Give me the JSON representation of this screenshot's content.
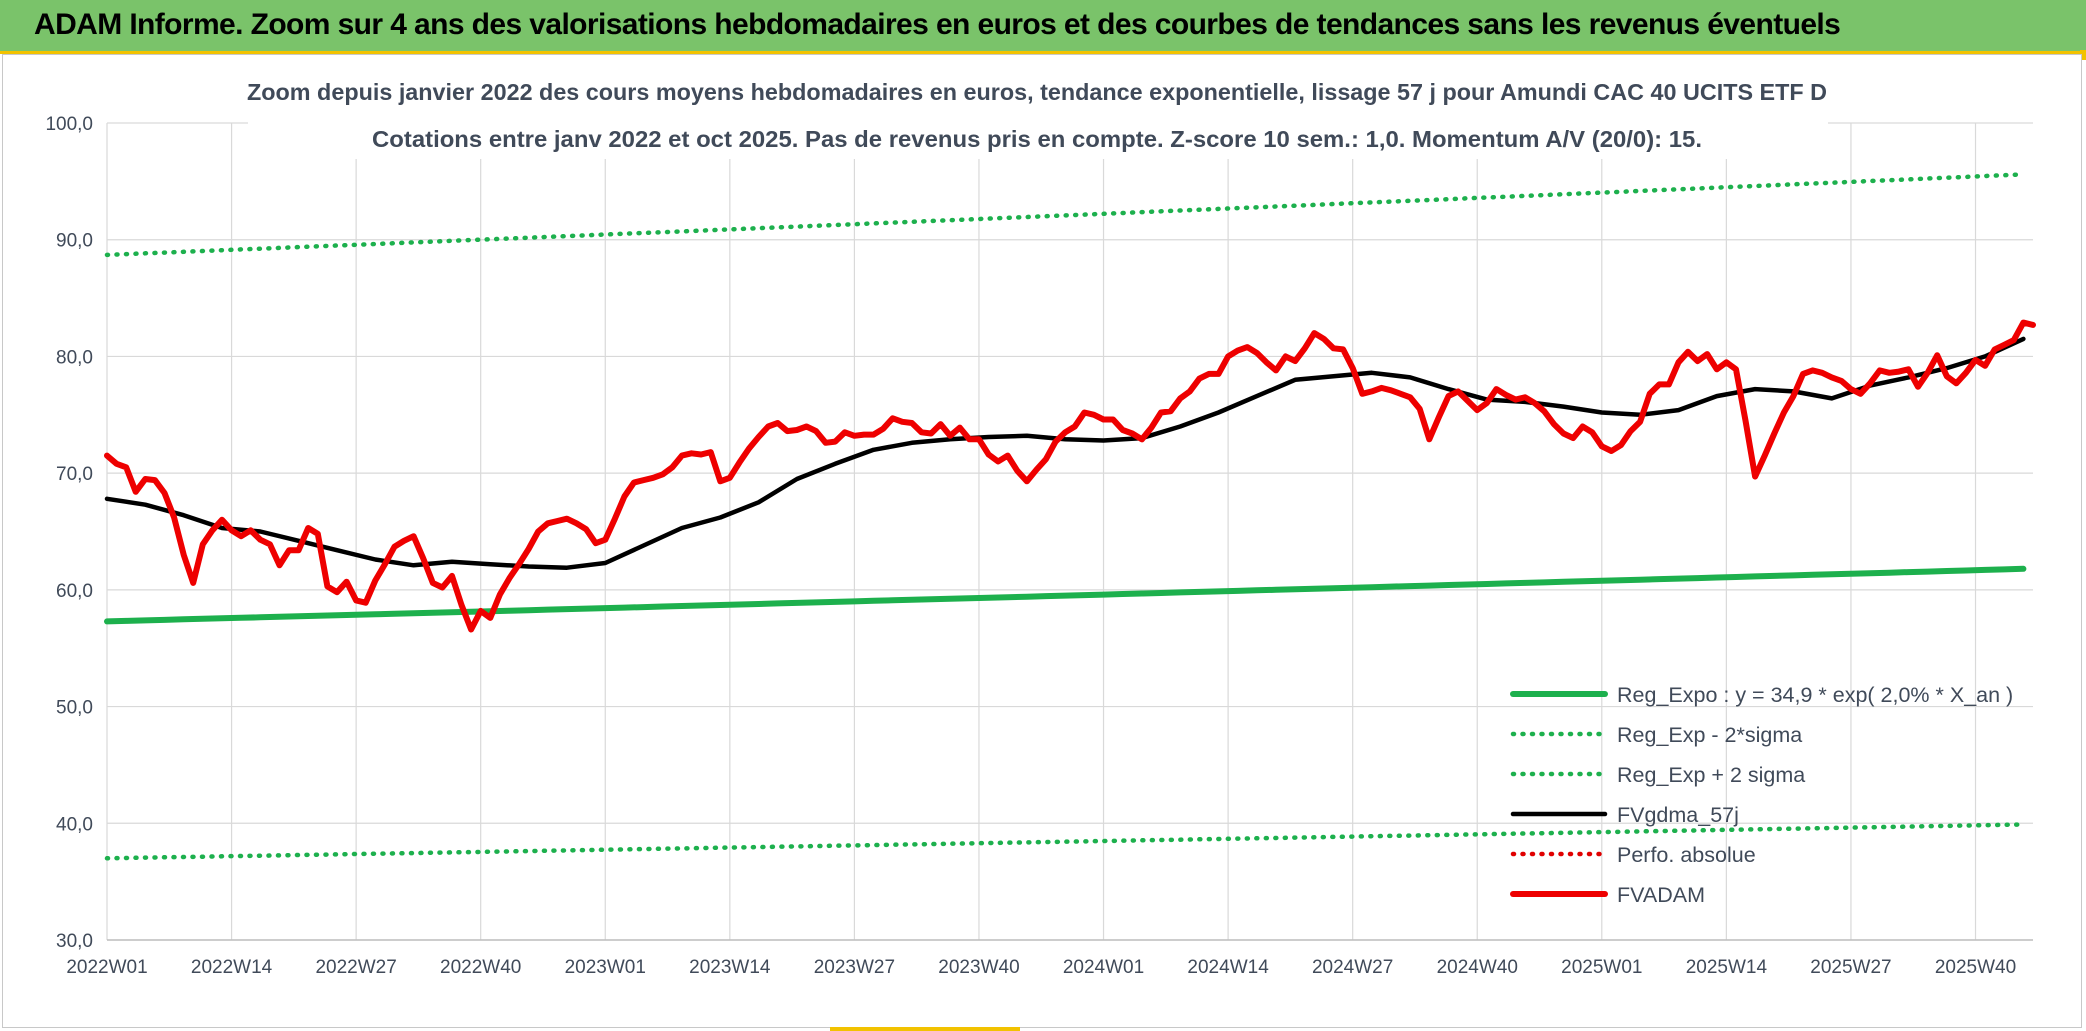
{
  "banner": {
    "title": "ADAM Informe. Zoom sur 4 ans des valorisations hebdomadaires en euros et des courbes de tendances sans les revenus éventuels"
  },
  "colors": {
    "banner_bg": "#7ac36a",
    "accent_yellow": "#f2c200",
    "reg_expo": "#1db04d",
    "sigma_band": "#1db04d",
    "fvgdma": "#000000",
    "perfo": "#e00000",
    "fvadam": "#ee0000",
    "grid": "#d9d9d9",
    "axis_text": "#404a59"
  },
  "chart_data": {
    "type": "line",
    "title": "Zoom depuis janvier 2022 des cours moyens hebdomadaires en euros, tendance exponentielle, lissage 57 j pour Amundi CAC 40 UCITS ETF D",
    "subtitle": "Cotations entre janv 2022 et oct 2025. Pas de revenus pris en compte. Z-score 10 sem.: 1,0. Momentum A/V (20/0): 15.",
    "ylim": [
      30,
      100
    ],
    "yticks": [
      "30,0",
      "40,0",
      "50,0",
      "60,0",
      "70,0",
      "80,0",
      "90,0",
      "100,0"
    ],
    "x_tick_labels": [
      "2022W01",
      "2022W14",
      "2022W27",
      "2022W40",
      "2023W01",
      "2023W14",
      "2023W27",
      "2023W40",
      "2024W01",
      "2024W14",
      "2024W27",
      "2024W40",
      "2025W01",
      "2025W14",
      "2025W27",
      "2025W40"
    ],
    "x_tick_weeks": [
      0,
      13,
      26,
      39,
      52,
      65,
      78,
      91,
      104,
      117,
      130,
      143,
      156,
      169,
      182,
      195
    ],
    "n_weeks": 201,
    "grid": true,
    "legend_position": "bottom-right",
    "series": [
      {
        "name": "Reg_Expo : y = 34,9 * exp( 2,0% *  X_an )",
        "style": "solid-thick",
        "color": "#1db04d",
        "start": 57.3,
        "end": 61.8
      },
      {
        "name": "Reg_Exp - 2*sigma",
        "style": "dotted",
        "color": "#1db04d",
        "start": 37.0,
        "end": 39.9
      },
      {
        "name": "Reg_Exp + 2 sigma",
        "style": "dotted",
        "color": "#1db04d",
        "start": 88.7,
        "end": 95.6
      },
      {
        "name": "FVgdma_57j",
        "style": "solid",
        "color": "#000000",
        "points": [
          [
            0,
            67.8
          ],
          [
            4,
            67.3
          ],
          [
            8,
            66.4
          ],
          [
            12,
            65.3
          ],
          [
            16,
            65.0
          ],
          [
            20,
            64.2
          ],
          [
            24,
            63.4
          ],
          [
            28,
            62.6
          ],
          [
            32,
            62.1
          ],
          [
            36,
            62.4
          ],
          [
            40,
            62.2
          ],
          [
            44,
            62.0
          ],
          [
            48,
            61.9
          ],
          [
            52,
            62.3
          ],
          [
            56,
            63.8
          ],
          [
            60,
            65.3
          ],
          [
            64,
            66.2
          ],
          [
            68,
            67.5
          ],
          [
            72,
            69.5
          ],
          [
            76,
            70.8
          ],
          [
            80,
            72.0
          ],
          [
            84,
            72.6
          ],
          [
            88,
            72.9
          ],
          [
            92,
            73.1
          ],
          [
            96,
            73.2
          ],
          [
            100,
            72.9
          ],
          [
            104,
            72.8
          ],
          [
            108,
            73.0
          ],
          [
            112,
            74.0
          ],
          [
            116,
            75.2
          ],
          [
            120,
            76.6
          ],
          [
            124,
            78.0
          ],
          [
            128,
            78.3
          ],
          [
            132,
            78.6
          ],
          [
            136,
            78.2
          ],
          [
            140,
            77.2
          ],
          [
            144,
            76.3
          ],
          [
            148,
            76.1
          ],
          [
            152,
            75.7
          ],
          [
            156,
            75.2
          ],
          [
            160,
            75.0
          ],
          [
            164,
            75.4
          ],
          [
            168,
            76.6
          ],
          [
            172,
            77.2
          ],
          [
            176,
            77.0
          ],
          [
            180,
            76.4
          ],
          [
            184,
            77.5
          ],
          [
            188,
            78.2
          ],
          [
            192,
            79.0
          ],
          [
            196,
            80.0
          ],
          [
            200,
            81.5
          ]
        ]
      },
      {
        "name": "Perfo. absolue",
        "style": "dotted",
        "color": "#e00000"
      },
      {
        "name": "FVADAM",
        "style": "solid-thick",
        "color": "#ee0000",
        "points": [
          [
            0,
            71.5
          ],
          [
            1,
            70.8
          ],
          [
            2,
            70.5
          ],
          [
            3,
            68.4
          ],
          [
            4,
            69.5
          ],
          [
            5,
            69.4
          ],
          [
            6,
            68.3
          ],
          [
            7,
            66.2
          ],
          [
            8,
            63.0
          ],
          [
            9,
            60.6
          ],
          [
            10,
            63.9
          ],
          [
            11,
            65.1
          ],
          [
            12,
            66.0
          ],
          [
            13,
            65.1
          ],
          [
            14,
            64.6
          ],
          [
            15,
            65.1
          ],
          [
            16,
            64.3
          ],
          [
            17,
            63.9
          ],
          [
            18,
            62.1
          ],
          [
            19,
            63.4
          ],
          [
            20,
            63.4
          ],
          [
            21,
            65.3
          ],
          [
            22,
            64.8
          ],
          [
            23,
            60.3
          ],
          [
            24,
            59.8
          ],
          [
            25,
            60.7
          ],
          [
            26,
            59.1
          ],
          [
            27,
            58.9
          ],
          [
            28,
            60.8
          ],
          [
            29,
            62.2
          ],
          [
            30,
            63.7
          ],
          [
            31,
            64.2
          ],
          [
            32,
            64.6
          ],
          [
            33,
            62.7
          ],
          [
            34,
            60.6
          ],
          [
            35,
            60.2
          ],
          [
            36,
            61.2
          ],
          [
            37,
            58.7
          ],
          [
            38,
            56.6
          ],
          [
            39,
            58.2
          ],
          [
            40,
            57.6
          ],
          [
            41,
            59.6
          ],
          [
            42,
            61.0
          ],
          [
            43,
            62.2
          ],
          [
            44,
            63.5
          ],
          [
            45,
            65.0
          ],
          [
            46,
            65.7
          ],
          [
            47,
            65.9
          ],
          [
            48,
            66.1
          ],
          [
            49,
            65.7
          ],
          [
            50,
            65.2
          ],
          [
            51,
            64.0
          ],
          [
            52,
            64.3
          ],
          [
            53,
            66.1
          ],
          [
            54,
            68.0
          ],
          [
            55,
            69.2
          ],
          [
            56,
            69.4
          ],
          [
            57,
            69.6
          ],
          [
            58,
            69.9
          ],
          [
            59,
            70.5
          ],
          [
            60,
            71.5
          ],
          [
            61,
            71.7
          ],
          [
            62,
            71.6
          ],
          [
            63,
            71.8
          ],
          [
            64,
            69.3
          ],
          [
            65,
            69.6
          ],
          [
            66,
            70.9
          ],
          [
            67,
            72.1
          ],
          [
            68,
            73.1
          ],
          [
            69,
            74.0
          ],
          [
            70,
            74.3
          ],
          [
            71,
            73.6
          ],
          [
            72,
            73.7
          ],
          [
            73,
            74.0
          ],
          [
            74,
            73.6
          ],
          [
            75,
            72.6
          ],
          [
            76,
            72.7
          ],
          [
            77,
            73.5
          ],
          [
            78,
            73.2
          ],
          [
            79,
            73.3
          ],
          [
            80,
            73.3
          ],
          [
            81,
            73.8
          ],
          [
            82,
            74.7
          ],
          [
            83,
            74.4
          ],
          [
            84,
            74.3
          ],
          [
            85,
            73.5
          ],
          [
            86,
            73.4
          ],
          [
            87,
            74.2
          ],
          [
            88,
            73.2
          ],
          [
            89,
            73.9
          ],
          [
            90,
            72.9
          ],
          [
            91,
            72.9
          ],
          [
            92,
            71.6
          ],
          [
            93,
            71.0
          ],
          [
            94,
            71.5
          ],
          [
            95,
            70.2
          ],
          [
            96,
            69.3
          ],
          [
            97,
            70.3
          ],
          [
            98,
            71.2
          ],
          [
            99,
            72.7
          ],
          [
            100,
            73.5
          ],
          [
            101,
            74.0
          ],
          [
            102,
            75.2
          ],
          [
            103,
            75.0
          ],
          [
            104,
            74.6
          ],
          [
            105,
            74.6
          ],
          [
            106,
            73.7
          ],
          [
            107,
            73.4
          ],
          [
            108,
            72.9
          ],
          [
            109,
            73.9
          ],
          [
            110,
            75.2
          ],
          [
            111,
            75.3
          ],
          [
            112,
            76.4
          ],
          [
            113,
            77.0
          ],
          [
            114,
            78.1
          ],
          [
            115,
            78.5
          ],
          [
            116,
            78.5
          ],
          [
            117,
            80.0
          ],
          [
            118,
            80.5
          ],
          [
            119,
            80.8
          ],
          [
            120,
            80.3
          ],
          [
            121,
            79.5
          ],
          [
            122,
            78.8
          ],
          [
            123,
            80.0
          ],
          [
            124,
            79.6
          ],
          [
            125,
            80.7
          ],
          [
            126,
            82.0
          ],
          [
            127,
            81.5
          ],
          [
            128,
            80.7
          ],
          [
            129,
            80.6
          ],
          [
            130,
            79.0
          ],
          [
            131,
            76.8
          ],
          [
            132,
            77.0
          ],
          [
            133,
            77.3
          ],
          [
            134,
            77.1
          ],
          [
            135,
            76.8
          ],
          [
            136,
            76.5
          ],
          [
            137,
            75.5
          ],
          [
            138,
            72.9
          ],
          [
            139,
            74.8
          ],
          [
            140,
            76.6
          ],
          [
            141,
            77.0
          ],
          [
            142,
            76.2
          ],
          [
            143,
            75.4
          ],
          [
            144,
            76.0
          ],
          [
            145,
            77.2
          ],
          [
            146,
            76.7
          ],
          [
            147,
            76.3
          ],
          [
            148,
            76.5
          ],
          [
            149,
            76.0
          ],
          [
            150,
            75.3
          ],
          [
            151,
            74.2
          ],
          [
            152,
            73.4
          ],
          [
            153,
            73.0
          ],
          [
            154,
            74.0
          ],
          [
            155,
            73.5
          ],
          [
            156,
            72.3
          ],
          [
            157,
            71.9
          ],
          [
            158,
            72.4
          ],
          [
            159,
            73.6
          ],
          [
            160,
            74.4
          ],
          [
            161,
            76.8
          ],
          [
            162,
            77.6
          ],
          [
            163,
            77.6
          ],
          [
            164,
            79.5
          ],
          [
            165,
            80.4
          ],
          [
            166,
            79.6
          ],
          [
            167,
            80.2
          ],
          [
            168,
            78.9
          ],
          [
            169,
            79.5
          ],
          [
            170,
            78.9
          ],
          [
            171,
            74.5
          ],
          [
            172,
            69.7
          ],
          [
            173,
            71.5
          ],
          [
            174,
            73.4
          ],
          [
            175,
            75.2
          ],
          [
            176,
            76.6
          ],
          [
            177,
            78.5
          ],
          [
            178,
            78.8
          ],
          [
            179,
            78.6
          ],
          [
            180,
            78.2
          ],
          [
            181,
            77.9
          ],
          [
            182,
            77.2
          ],
          [
            183,
            76.8
          ],
          [
            184,
            77.7
          ],
          [
            185,
            78.8
          ],
          [
            186,
            78.6
          ],
          [
            187,
            78.7
          ],
          [
            188,
            78.9
          ],
          [
            189,
            77.4
          ],
          [
            190,
            78.6
          ],
          [
            191,
            80.1
          ],
          [
            192,
            78.3
          ],
          [
            193,
            77.7
          ],
          [
            194,
            78.6
          ],
          [
            195,
            79.7
          ],
          [
            196,
            79.2
          ],
          [
            197,
            80.6
          ],
          [
            198,
            81.0
          ],
          [
            199,
            81.4
          ],
          [
            200,
            82.9
          ],
          [
            201,
            82.7
          ]
        ]
      }
    ]
  }
}
